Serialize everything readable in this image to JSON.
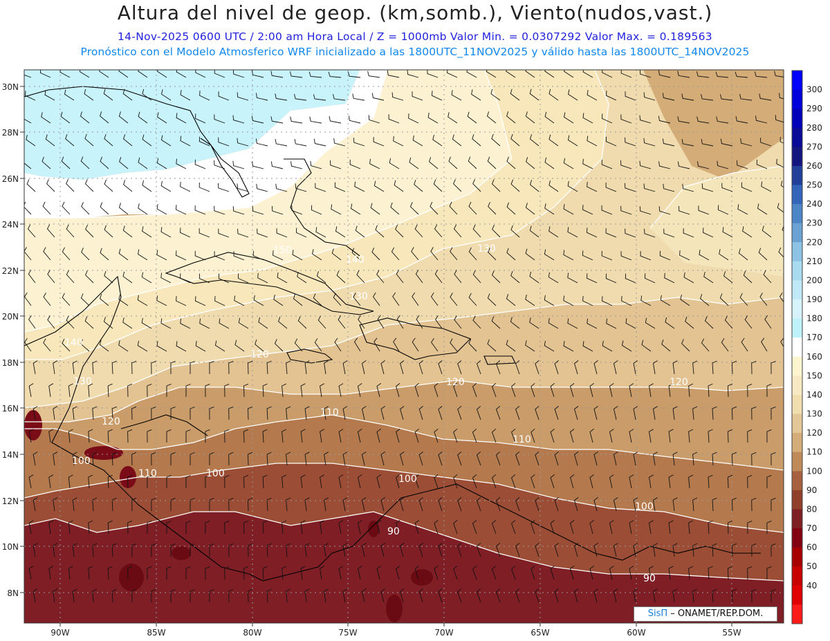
{
  "header": {
    "title": "Altura del nivel de geop. (km,somb.), Viento(nudos,vast.)",
    "subtitle": "14-Nov-2025  0600 UTC / 2:00 am Hora Local / Z = 1000mb  Valor Min. = 0.0307292  Valor Max. = 0.189563",
    "model_line": "Pronóstico con el Modelo Atmosferico WRF inicializado a las 1800UTC_11NOV2025 y válido hasta las  1800UTC_14NOV2025"
  },
  "map": {
    "lat_labels": [
      "30N",
      "28N",
      "26N",
      "24N",
      "22N",
      "20N",
      "18N",
      "16N",
      "14N",
      "12N",
      "10N",
      "8N"
    ],
    "lon_labels": [
      "90W",
      "85W",
      "80W",
      "75W",
      "70W",
      "65W",
      "60W",
      "55W"
    ],
    "contour_labels": [
      "130",
      "120",
      "110",
      "100",
      "90",
      "140",
      "150"
    ]
  },
  "colorbar": {
    "levels": [
      "300",
      "290",
      "280",
      "270",
      "260",
      "250",
      "240",
      "230",
      "220",
      "210",
      "200",
      "190",
      "180",
      "170",
      "160",
      "150",
      "140",
      "130",
      "120",
      "110",
      "100",
      "90",
      "80",
      "70",
      "60",
      "50",
      "40"
    ],
    "colors": [
      "#0000ff",
      "#0000dd",
      "#0000bb",
      "#0a0a99",
      "#151580",
      "#223f99",
      "#3366bb",
      "#4d86c6",
      "#6aa2d4",
      "#8cc2e4",
      "#a8daf0",
      "#c0e8f6",
      "#d6f2fb",
      "#bff3fb",
      "#ffffff",
      "#fdf5d0",
      "#f7eac2",
      "#f0deaf",
      "#e4c796",
      "#d3ac78",
      "#c08a58",
      "#a8613e",
      "#8f3f2a",
      "#7e1f24",
      "#820012",
      "#a60000",
      "#c80000",
      "#e00000",
      "#ff1a1a"
    ]
  },
  "credit": {
    "brand": "SisΠ",
    "text": " – ONAMET/REP.DOM."
  }
}
